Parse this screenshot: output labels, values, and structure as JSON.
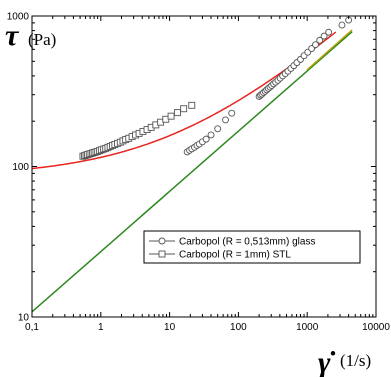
{
  "chart_data": {
    "type": "scatter",
    "title": "",
    "xscale": "log",
    "yscale": "log",
    "xlim": [
      0.1,
      10000
    ],
    "ylim": [
      10,
      1000
    ],
    "grid": false,
    "legend_position": "lower-right",
    "xlabel": {
      "symbol": "γ̇",
      "unit": "(1/s)"
    },
    "ylabel": {
      "symbol": "τ",
      "unit": "(Pa)"
    },
    "xticks": [
      {
        "value": 0.1,
        "label": "0,1"
      },
      {
        "value": 1,
        "label": "1"
      },
      {
        "value": 10,
        "label": "10"
      },
      {
        "value": 100,
        "label": "100"
      },
      {
        "value": 1000,
        "label": "1000"
      },
      {
        "value": 10000,
        "label": "10000"
      }
    ],
    "yticks": [
      {
        "value": 10,
        "label": "10"
      },
      {
        "value": 100,
        "label": "100"
      },
      {
        "value": 1000,
        "label": "1000"
      }
    ],
    "series": [
      {
        "name": "Carbopol (R = 0,513mm) glass",
        "marker": "circle",
        "color": "#555555",
        "points": [
          [
            18,
            125
          ],
          [
            19.5,
            128
          ],
          [
            21,
            131
          ],
          [
            23,
            134
          ],
          [
            25,
            138
          ],
          [
            27,
            141
          ],
          [
            30,
            146
          ],
          [
            34,
            152
          ],
          [
            40,
            162
          ],
          [
            50,
            178
          ],
          [
            65,
            204
          ],
          [
            80,
            226
          ],
          [
            200,
            292
          ],
          [
            210,
            298
          ],
          [
            220,
            303
          ],
          [
            232,
            310
          ],
          [
            245,
            316
          ],
          [
            258,
            323
          ],
          [
            272,
            330
          ],
          [
            288,
            337
          ],
          [
            305,
            345
          ],
          [
            325,
            354
          ],
          [
            348,
            363
          ],
          [
            375,
            374
          ],
          [
            405,
            386
          ],
          [
            440,
            400
          ],
          [
            480,
            414
          ],
          [
            525,
            430
          ],
          [
            580,
            448
          ],
          [
            640,
            468
          ],
          [
            710,
            490
          ],
          [
            800,
            515
          ],
          [
            900,
            545
          ],
          [
            1020,
            575
          ],
          [
            1160,
            608
          ],
          [
            1320,
            645
          ],
          [
            1520,
            690
          ],
          [
            1760,
            735
          ],
          [
            2050,
            780
          ],
          [
            3200,
            870
          ],
          [
            4000,
            940
          ]
        ]
      },
      {
        "name": "Carbopol (R = 1mm) STL",
        "marker": "square",
        "color": "#555555",
        "points": [
          [
            0.55,
            117
          ],
          [
            0.58,
            118
          ],
          [
            0.61,
            119
          ],
          [
            0.64,
            120
          ],
          [
            0.68,
            121
          ],
          [
            0.72,
            122
          ],
          [
            0.76,
            123
          ],
          [
            0.8,
            124
          ],
          [
            0.85,
            125
          ],
          [
            0.9,
            126
          ],
          [
            0.96,
            127.5
          ],
          [
            1.02,
            129
          ],
          [
            1.1,
            130.5
          ],
          [
            1.18,
            132
          ],
          [
            1.27,
            134
          ],
          [
            1.37,
            136
          ],
          [
            1.48,
            138
          ],
          [
            1.6,
            140
          ],
          [
            1.75,
            142.5
          ],
          [
            1.92,
            145
          ],
          [
            2.1,
            148
          ],
          [
            2.3,
            151
          ],
          [
            2.55,
            154
          ],
          [
            2.85,
            158
          ],
          [
            3.2,
            162
          ],
          [
            3.6,
            166
          ],
          [
            4.1,
            171
          ],
          [
            4.7,
            176
          ],
          [
            5.4,
            182
          ],
          [
            6.3,
            189
          ],
          [
            7.4,
            197
          ],
          [
            8.8,
            206
          ],
          [
            10.5,
            216
          ],
          [
            13,
            228
          ],
          [
            16,
            242
          ],
          [
            21,
            255
          ]
        ]
      },
      {
        "name": "",
        "type": "line",
        "color": "#e8251f",
        "model": "herschel-bulkley",
        "tau0": 85,
        "K": 30,
        "n": 0.4,
        "x_range": [
          0.1,
          2600
        ]
      },
      {
        "name": "",
        "type": "line",
        "color": "#2a8a1c",
        "model": "power-law",
        "K": 27.2,
        "n": 0.4,
        "x_range": [
          0.1,
          4500
        ]
      },
      {
        "name": "",
        "type": "line",
        "color": "#b9a30f",
        "model": "power-law",
        "K": 26.8,
        "n": 0.405,
        "x_range": [
          1000,
          4500
        ]
      }
    ]
  }
}
